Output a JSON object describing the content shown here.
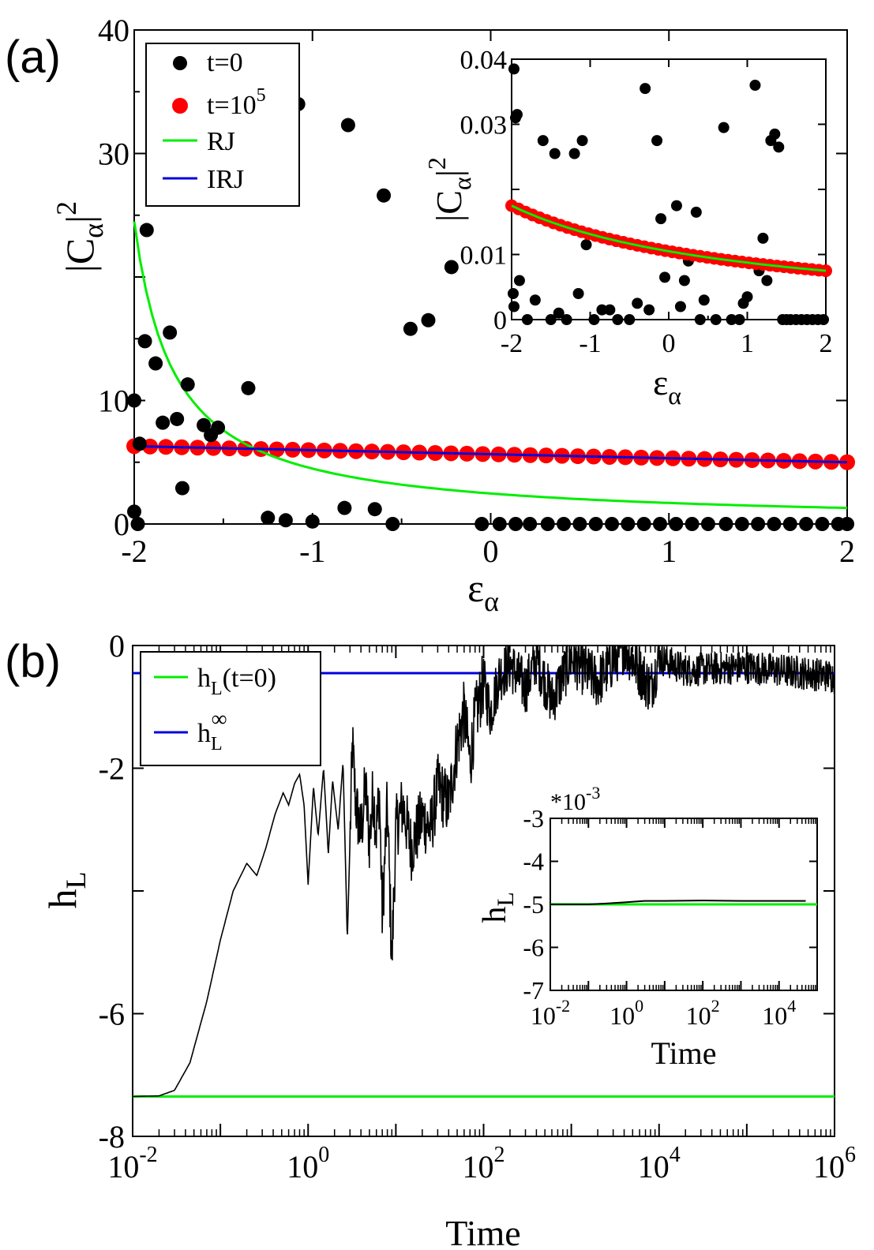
{
  "panels": {
    "a": {
      "label": "(a)"
    },
    "b": {
      "label": "(b)"
    }
  },
  "chart_data": [
    {
      "id": "a-main",
      "type": "scatter",
      "xlabel_main": "ε",
      "xlabel_sub": "α",
      "ylabel_main": "|C",
      "ylabel_sub": "α",
      "ylabel_tail": "|",
      "ylabel_sup": "2",
      "xlim": [
        -2,
        2
      ],
      "ylim": [
        0,
        40
      ],
      "xticks": [
        -2,
        -1,
        0,
        1,
        2
      ],
      "yticks": [
        0,
        10,
        30,
        40
      ],
      "ytick_labels": [
        "0",
        "10",
        "30",
        "40"
      ],
      "xtick_labels": [
        "-2",
        "-1",
        "0",
        "1",
        "2"
      ],
      "legend": [
        {
          "label": "t=0",
          "kind": "dot",
          "color": "#000000"
        },
        {
          "label": "t=10",
          "sup": "5",
          "kind": "dot",
          "color": "#ff0000"
        },
        {
          "label": "RJ",
          "kind": "line",
          "color": "#00ee00"
        },
        {
          "label": "IRJ",
          "kind": "line",
          "color": "#0000dd"
        }
      ],
      "series": [
        {
          "name": "t=0",
          "kind": "points",
          "color": "#000000",
          "points": [
            [
              -2.0,
              10.0
            ],
            [
              -2.0,
              1.0
            ],
            [
              -1.98,
              0.0
            ],
            [
              -1.97,
              6.5
            ],
            [
              -1.94,
              14.8
            ],
            [
              -1.93,
              23.8
            ],
            [
              -1.88,
              13.0
            ],
            [
              -1.84,
              8.2
            ],
            [
              -1.8,
              15.5
            ],
            [
              -1.76,
              8.5
            ],
            [
              -1.73,
              2.9
            ],
            [
              -1.7,
              11.3
            ],
            [
              -1.61,
              8.0
            ],
            [
              -1.57,
              7.2
            ],
            [
              -1.53,
              7.8
            ],
            [
              -1.36,
              11.0
            ],
            [
              -1.25,
              0.5
            ],
            [
              -1.15,
              0.3
            ],
            [
              -1.0,
              0.2
            ],
            [
              -0.82,
              1.3
            ],
            [
              -0.65,
              1.2
            ],
            [
              -0.55,
              0.0
            ],
            [
              -0.45,
              15.8
            ],
            [
              -0.35,
              16.5
            ],
            [
              -0.22,
              20.8
            ],
            [
              -0.05,
              0.0
            ],
            [
              0.05,
              0.0
            ],
            [
              0.14,
              0.0
            ],
            [
              0.22,
              0.0
            ],
            [
              0.32,
              0.0
            ],
            [
              0.41,
              0.0
            ],
            [
              0.5,
              0.0
            ],
            [
              0.59,
              0.0
            ],
            [
              0.68,
              0.0
            ],
            [
              0.77,
              0.0
            ],
            [
              0.86,
              0.0
            ],
            [
              0.95,
              0.0
            ],
            [
              1.04,
              0.0
            ],
            [
              1.13,
              0.0
            ],
            [
              1.22,
              0.0
            ],
            [
              1.32,
              0.0
            ],
            [
              1.41,
              0.0
            ],
            [
              1.5,
              0.0
            ],
            [
              1.59,
              0.0
            ],
            [
              1.68,
              0.0
            ],
            [
              1.77,
              0.0
            ],
            [
              1.86,
              0.0
            ],
            [
              1.95,
              0.0
            ],
            [
              2.0,
              0.0
            ],
            [
              -1.08,
              34.0
            ],
            [
              -0.8,
              32.3
            ],
            [
              -0.6,
              26.6
            ]
          ]
        },
        {
          "name": "t=10^5",
          "kind": "points",
          "color": "#ff0000",
          "x_start": -2.0,
          "x_end": 2.0,
          "count": 46,
          "y_start": 6.3,
          "y_end": 5.0
        },
        {
          "name": "RJ",
          "kind": "rj",
          "color": "#00ee00",
          "y_at_xmin": 24.5,
          "y_at_xmax": 1.3
        },
        {
          "name": "IRJ",
          "kind": "line",
          "color": "#0000dd",
          "points": [
            [
              -2.0,
              6.3
            ],
            [
              2.0,
              5.0
            ]
          ]
        }
      ]
    },
    {
      "id": "a-inset",
      "type": "scatter",
      "xlabel_main": "ε",
      "xlabel_sub": "α",
      "ylabel_main": "|C",
      "ylabel_sub": "α",
      "ylabel_tail": "|",
      "ylabel_sup": "2",
      "xlim": [
        -2,
        2
      ],
      "ylim": [
        0,
        0.04
      ],
      "xticks": [
        -2,
        -1,
        0,
        1,
        2
      ],
      "xtick_labels": [
        "-2",
        "-1",
        "0",
        "1",
        "2"
      ],
      "yticks": [
        0,
        0.01,
        0.03,
        0.04
      ],
      "ytick_labels": [
        "0",
        "0.01",
        "0.03",
        "0.04"
      ],
      "series": [
        {
          "name": "t=0",
          "kind": "points",
          "color": "#000000",
          "points": [
            [
              -1.97,
              0.0385
            ],
            [
              -1.95,
              0.031
            ],
            [
              -1.93,
              0.0315
            ],
            [
              -1.98,
              0.004
            ],
            [
              -1.97,
              0.002
            ],
            [
              -1.9,
              0.006
            ],
            [
              -1.8,
              0.0
            ],
            [
              -1.7,
              0.003
            ],
            [
              -1.6,
              0.0275
            ],
            [
              -1.5,
              0.0
            ],
            [
              -1.45,
              0.0255
            ],
            [
              -1.4,
              0.001
            ],
            [
              -1.3,
              0.0
            ],
            [
              -1.2,
              0.0255
            ],
            [
              -1.1,
              0.0275
            ],
            [
              -1.15,
              0.004
            ],
            [
              -1.05,
              0.0115
            ],
            [
              -0.95,
              0.0
            ],
            [
              -0.85,
              0.0015
            ],
            [
              -0.75,
              0.0015
            ],
            [
              -0.65,
              0.0
            ],
            [
              -0.5,
              0.0
            ],
            [
              -0.4,
              0.0025
            ],
            [
              -0.3,
              0.0355
            ],
            [
              -0.25,
              0.0015
            ],
            [
              -0.15,
              0.0275
            ],
            [
              -0.1,
              0.0155
            ],
            [
              -0.05,
              0.0065
            ],
            [
              0.1,
              0.0175
            ],
            [
              0.15,
              0.002
            ],
            [
              0.2,
              0.006
            ],
            [
              0.25,
              0.009
            ],
            [
              0.35,
              0.0165
            ],
            [
              0.4,
              0.0
            ],
            [
              0.45,
              0.003
            ],
            [
              0.6,
              0.0
            ],
            [
              0.7,
              0.0295
            ],
            [
              0.8,
              0.0
            ],
            [
              0.9,
              0.0
            ],
            [
              0.95,
              0.0025
            ],
            [
              1.0,
              0.0035
            ],
            [
              1.1,
              0.036
            ],
            [
              1.15,
              0.0075
            ],
            [
              1.2,
              0.0125
            ],
            [
              1.3,
              0.0275
            ],
            [
              1.35,
              0.0285
            ],
            [
              1.4,
              0.0265
            ],
            [
              1.45,
              0.0
            ],
            [
              1.55,
              0.0
            ],
            [
              1.62,
              0.0
            ],
            [
              1.69,
              0.0
            ],
            [
              1.76,
              0.0
            ],
            [
              1.83,
              0.0
            ],
            [
              1.9,
              0.0
            ],
            [
              1.97,
              0.0
            ],
            [
              1.5,
              0.0
            ],
            [
              1.25,
              0.006
            ]
          ]
        },
        {
          "name": "t=10^5",
          "kind": "points",
          "color": "#ff0000",
          "x_start": -2.0,
          "x_end": 2.0,
          "count": 46,
          "y_start": 0.0175,
          "y_end": 0.0075
        },
        {
          "name": "RJ",
          "kind": "rj",
          "color": "#00ee00",
          "y_at_xmin": 0.0175,
          "y_at_xmax": 0.0075
        }
      ]
    },
    {
      "id": "b-main",
      "type": "line",
      "xscale": "log",
      "xlabel": "Time",
      "ylabel_main": "h",
      "ylabel_sub": "L",
      "xlim": [
        0.01,
        1000000
      ],
      "ylim": [
        -8,
        0
      ],
      "xticks": [
        0.01,
        1,
        100,
        10000,
        1000000
      ],
      "xtick_labels": [
        [
          "10",
          "-2"
        ],
        [
          "10",
          "0"
        ],
        [
          "10",
          "2"
        ],
        [
          "10",
          "4"
        ],
        [
          "10",
          "6"
        ]
      ],
      "yticks": [
        -8,
        -6,
        -2,
        0
      ],
      "ytick_labels": [
        "-8",
        "-6",
        "-2",
        "0"
      ],
      "legend": [
        {
          "label_main": "h",
          "label_sub": "L",
          "label_tail": "(t=0)",
          "color": "#00ee00"
        },
        {
          "label_main": "h",
          "label_sub": "L",
          "label_sup": "∞",
          "color": "#0000dd"
        }
      ],
      "series": [
        {
          "name": "h_L(t=0)",
          "kind": "hline",
          "color": "#00ee00",
          "y": -7.35
        },
        {
          "name": "h_L^∞",
          "kind": "hline",
          "color": "#0000dd",
          "y": -0.45
        },
        {
          "name": "h_L(t)",
          "kind": "envelope",
          "color": "#000000",
          "points": [
            [
              0.01,
              -7.35
            ],
            [
              0.02,
              -7.34
            ],
            [
              0.03,
              -7.25
            ],
            [
              0.045,
              -6.8
            ],
            [
              0.07,
              -5.8
            ],
            [
              0.1,
              -4.8
            ],
            [
              0.14,
              -4.0
            ],
            [
              0.2,
              -3.55
            ],
            [
              0.26,
              -3.75
            ],
            [
              0.33,
              -3.3
            ],
            [
              0.42,
              -2.75
            ],
            [
              0.52,
              -2.4
            ],
            [
              0.6,
              -2.6
            ],
            [
              0.7,
              -2.25
            ],
            [
              0.8,
              -2.1
            ],
            [
              0.9,
              -2.6
            ],
            [
              1.0,
              -3.9
            ],
            [
              1.15,
              -2.3
            ],
            [
              1.3,
              -3.1
            ],
            [
              1.5,
              -2.0
            ],
            [
              1.7,
              -3.4
            ],
            [
              1.9,
              -2.2
            ],
            [
              2.2,
              -3.0
            ],
            [
              2.5,
              -1.9
            ],
            [
              2.8,
              -4.8
            ],
            [
              3.0,
              -3.2
            ],
            [
              3.2,
              -1.6
            ],
            [
              3.5,
              -2.6
            ],
            [
              4,
              -3.1
            ],
            [
              4.5,
              -2.3
            ],
            [
              5,
              -3.2
            ],
            [
              5.5,
              -2.4
            ],
            [
              6,
              -3.0
            ],
            [
              6.5,
              -2.4
            ],
            [
              7,
              -4.4
            ],
            [
              8,
              -2.6
            ],
            [
              9,
              -5.2
            ],
            [
              10,
              -3.0
            ],
            [
              12,
              -2.6
            ],
            [
              15,
              -3.3
            ],
            [
              20,
              -2.8
            ],
            [
              25,
              -3.0
            ],
            [
              30,
              -2.3
            ],
            [
              40,
              -2.6
            ],
            [
              50,
              -1.6
            ],
            [
              60,
              -1.1
            ],
            [
              70,
              -1.9
            ],
            [
              80,
              -1.2
            ],
            [
              100,
              -0.6
            ],
            [
              120,
              -1.1
            ],
            [
              150,
              -0.5
            ],
            [
              200,
              -0.3
            ],
            [
              300,
              -0.7
            ],
            [
              400,
              -0.2
            ],
            [
              600,
              -0.9
            ],
            [
              1000,
              -0.2
            ],
            [
              2000,
              -0.6
            ],
            [
              4000,
              0.0
            ],
            [
              8000,
              -0.7
            ],
            [
              10000,
              -0.2
            ],
            [
              20000,
              -0.4
            ],
            [
              100000,
              -0.35
            ],
            [
              1000000,
              -0.5
            ]
          ]
        }
      ]
    },
    {
      "id": "b-inset",
      "type": "line",
      "xscale": "log",
      "xlabel": "Time",
      "ylabel_main": "h",
      "ylabel_sub": "L",
      "scale_note_pre": "*10",
      "scale_note_sup": "-3",
      "xlim": [
        0.01,
        100000
      ],
      "ylim": [
        -7,
        -3
      ],
      "xticks": [
        0.01,
        1,
        100,
        10000
      ],
      "xtick_labels": [
        [
          "10",
          "-2"
        ],
        [
          "10",
          "0"
        ],
        [
          "10",
          "2"
        ],
        [
          "10",
          "4"
        ]
      ],
      "yticks": [
        -7,
        -6,
        -5,
        -4,
        -3
      ],
      "ytick_labels": [
        "-7",
        "-6",
        "-5",
        "-4",
        "-3"
      ],
      "series": [
        {
          "name": "h_L(t=0)",
          "kind": "hline",
          "color": "#00ee00",
          "y": -5.0
        },
        {
          "name": "h_L(t)",
          "kind": "line",
          "color": "#000000",
          "points": [
            [
              0.01,
              -5.0
            ],
            [
              0.1,
              -5.0
            ],
            [
              0.3,
              -4.98
            ],
            [
              1,
              -4.95
            ],
            [
              3,
              -4.92
            ],
            [
              10,
              -4.92
            ],
            [
              100,
              -4.91
            ],
            [
              1000,
              -4.92
            ],
            [
              10000,
              -4.92
            ],
            [
              50000,
              -4.92
            ]
          ]
        }
      ]
    }
  ]
}
